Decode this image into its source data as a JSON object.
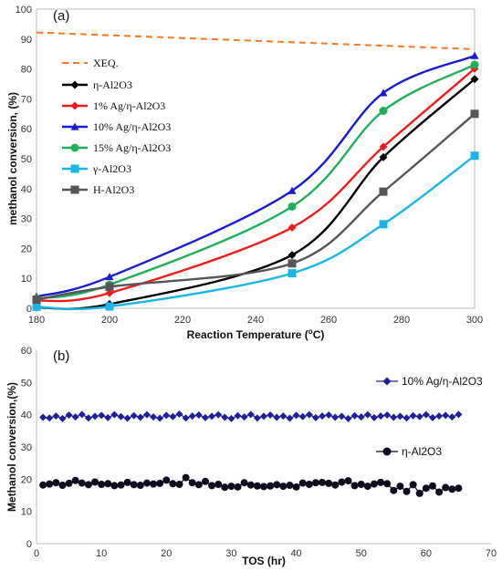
{
  "chart_data": [
    {
      "panel": "(a)",
      "type": "line",
      "xlabel": "Reaction Temperature (",
      "xlabel_sup": "o",
      "xlabel_end": "C)",
      "ylabel": "methanol conversion, (%)",
      "xlim": [
        180,
        300
      ],
      "ylim": [
        0,
        100
      ],
      "xticks": [
        "180",
        "200",
        "220",
        "240",
        "260",
        "280",
        "300"
      ],
      "yticks": [
        "0",
        "10",
        "20",
        "30",
        "40",
        "50",
        "60",
        "70",
        "80",
        "90",
        "100"
      ],
      "grid": false,
      "legend_position": "left",
      "series": [
        {
          "name": "XEQ.",
          "color": "#f07a2b",
          "marker": "none",
          "dashed": true,
          "points": [
            [
              180,
              92.2
            ],
            [
              300,
              86.6
            ]
          ]
        },
        {
          "name": "η-Al2O3",
          "color": "#000000",
          "marker": "diamond",
          "points": [
            [
              180,
              0.3
            ],
            [
              200,
              1.4
            ],
            [
              250,
              17.8
            ],
            [
              275,
              50.5
            ],
            [
              300,
              76.6
            ]
          ]
        },
        {
          "name": "1% Ag/η-Al2O3",
          "color": "#ee1c1c",
          "marker": "diamond",
          "points": [
            [
              180,
              2.5
            ],
            [
              200,
              5.1
            ],
            [
              250,
              27.0
            ],
            [
              275,
              54.0
            ],
            [
              300,
              80.1
            ]
          ]
        },
        {
          "name": "10% Ag/η-Al2O3",
          "color": "#1a1ad1",
          "marker": "triangle",
          "points": [
            [
              180,
              3.9
            ],
            [
              200,
              10.5
            ],
            [
              250,
              39.3
            ],
            [
              275,
              72.0
            ],
            [
              300,
              84.4
            ]
          ]
        },
        {
          "name": "15% Ag/η-Al2O3",
          "color": "#1fae5a",
          "marker": "circle",
          "points": [
            [
              180,
              3.2
            ],
            [
              200,
              7.9
            ],
            [
              250,
              34.0
            ],
            [
              275,
              66.0
            ],
            [
              300,
              81.4
            ]
          ]
        },
        {
          "name": "γ-Al2O3",
          "color": "#19b5e6",
          "marker": "square",
          "points": [
            [
              180,
              0.5
            ],
            [
              200,
              0.6
            ],
            [
              250,
              11.7
            ],
            [
              275,
              28.1
            ],
            [
              300,
              51.0
            ]
          ]
        },
        {
          "name": "H-Al2O3",
          "color": "#555555",
          "marker": "square",
          "points": [
            [
              180,
              2.9
            ],
            [
              200,
              7.2
            ],
            [
              250,
              15.0
            ],
            [
              275,
              39.0
            ],
            [
              300,
              65.0
            ]
          ]
        }
      ]
    },
    {
      "panel": "(b)",
      "type": "line",
      "xlabel": "TOS (hr)",
      "ylabel": "Methanol conversion,(%)",
      "xlim": [
        0,
        70
      ],
      "ylim": [
        0,
        60
      ],
      "xticks": [
        "0",
        "10",
        "20",
        "30",
        "40",
        "50",
        "60",
        "70"
      ],
      "yticks": [
        "0",
        "10",
        "20",
        "30",
        "40",
        "50",
        "60"
      ],
      "grid": false,
      "legend_position": "right",
      "series": [
        {
          "name": "10% Ag/η-Al2O3",
          "color": "#1f1f9a",
          "marker": "diamond",
          "x": [
            1,
            2,
            3,
            4,
            5,
            6,
            7,
            8,
            9,
            10,
            11,
            12,
            13,
            14,
            15,
            16,
            17,
            18,
            19,
            20,
            21,
            22,
            23,
            24,
            25,
            26,
            27,
            28,
            29,
            30,
            31,
            32,
            33,
            34,
            35,
            36,
            37,
            38,
            39,
            40,
            41,
            42,
            43,
            44,
            45,
            46,
            47,
            48,
            49,
            50,
            51,
            52,
            53,
            54,
            55,
            56,
            57,
            58,
            59,
            60,
            61,
            62,
            63,
            64,
            65
          ],
          "y": [
            39.2,
            39.0,
            39.6,
            38.8,
            39.9,
            39.3,
            40.1,
            39.0,
            39.5,
            39.8,
            39.1,
            40.0,
            39.4,
            38.9,
            39.7,
            39.2,
            40.0,
            39.3,
            38.9,
            39.8,
            39.4,
            40.2,
            39.0,
            39.6,
            39.9,
            39.1,
            39.5,
            40.0,
            39.2,
            38.8,
            39.7,
            39.3,
            40.1,
            39.0,
            39.5,
            39.9,
            39.2,
            39.6,
            38.9,
            39.8,
            39.4,
            40.0,
            39.1,
            39.6,
            39.9,
            39.2,
            39.5,
            38.8,
            39.7,
            39.3,
            40.0,
            39.1,
            39.6,
            39.9,
            39.2,
            39.5,
            39.0,
            39.7,
            39.4,
            40.0,
            39.1,
            39.6,
            39.8,
            39.3,
            40.1
          ]
        },
        {
          "name": "η-Al2O3",
          "color": "#0c0c1e",
          "marker": "circle",
          "x": [
            1,
            2,
            3,
            4,
            5,
            6,
            7,
            8,
            9,
            10,
            11,
            12,
            13,
            14,
            15,
            16,
            17,
            18,
            19,
            20,
            21,
            22,
            23,
            24,
            25,
            26,
            27,
            28,
            29,
            30,
            31,
            32,
            33,
            34,
            35,
            36,
            37,
            38,
            39,
            40,
            41,
            42,
            43,
            44,
            45,
            46,
            47,
            48,
            49,
            50,
            51,
            52,
            53,
            54,
            55,
            56,
            57,
            58,
            59,
            60,
            61,
            62,
            63,
            64,
            65
          ],
          "y": [
            18.2,
            18.5,
            18.9,
            18.1,
            18.7,
            19.6,
            18.8,
            18.3,
            19.1,
            18.4,
            18.6,
            18.0,
            18.2,
            19.0,
            18.3,
            18.1,
            18.8,
            18.5,
            18.7,
            19.7,
            18.6,
            18.4,
            20.5,
            18.9,
            18.3,
            19.3,
            18.0,
            18.4,
            17.5,
            17.8,
            17.6,
            18.9,
            18.2,
            17.9,
            17.7,
            17.9,
            18.3,
            17.8,
            18.1,
            17.6,
            18.8,
            18.4,
            18.9,
            19.0,
            18.7,
            18.2,
            19.1,
            19.5,
            18.0,
            18.4,
            17.8,
            18.5,
            19.0,
            18.6,
            16.5,
            17.8,
            16.2,
            18.3,
            15.6,
            17.2,
            17.9,
            16.0,
            17.4,
            16.9,
            17.2
          ]
        }
      ]
    }
  ]
}
